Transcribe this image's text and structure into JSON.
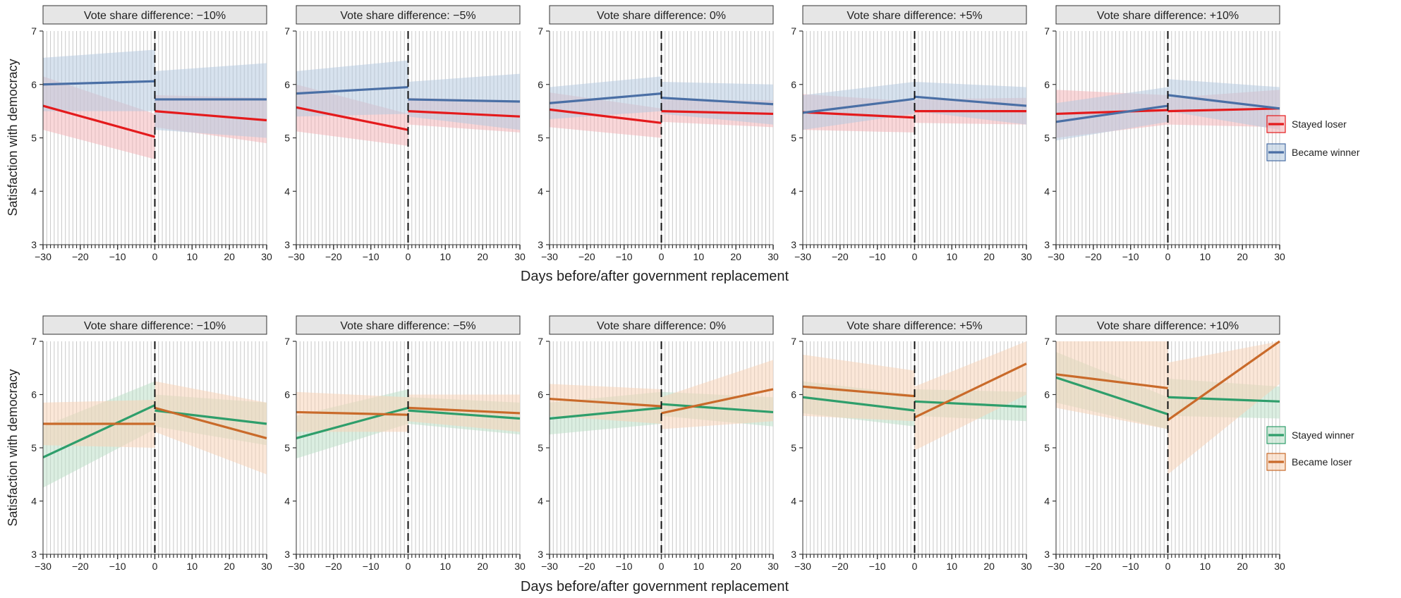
{
  "chart_data": {
    "type": "line",
    "x_range": [
      -30,
      30
    ],
    "y_range": [
      3,
      7
    ],
    "x_ticks": [
      -30,
      -20,
      -10,
      0,
      10,
      20,
      30
    ],
    "x_tick_labels": [
      "−30",
      "−20",
      "−10",
      "0",
      "10",
      "20",
      "30"
    ],
    "y_ticks": [
      3,
      4,
      5,
      6,
      7
    ],
    "y_tick_labels": [
      "3",
      "4",
      "5",
      "6",
      "7"
    ],
    "ylabel": "Satisfaction with democracy",
    "xlabel": "Days before/after government replacement",
    "cutoff_x": 0,
    "grid": "vertical lines every day",
    "panel_labels": [
      "Vote share difference: −10%",
      "Vote share difference: −5%",
      "Vote share difference: 0%",
      "Vote share difference: +5%",
      "Vote share difference: +10%"
    ],
    "rows": [
      {
        "legend_position": "right",
        "legend": [
          {
            "key": "s0",
            "label": "Stayed loser",
            "color": "#e41a1c",
            "fill": "#f4b6b9"
          },
          {
            "key": "s1",
            "label": "Became winner",
            "color": "#4a6fa5",
            "fill": "#b7cbe0"
          }
        ],
        "panels": [
          {
            "s0": {
              "pre": [
                5.6,
                5.02
              ],
              "post": [
                5.5,
                5.33
              ],
              "pre_ci": [
                [
                  6.15,
                  5.15
                ],
                [
                  5.45,
                  4.6
                ]
              ],
              "post_ci": [
                [
                  5.8,
                  5.2
                ],
                [
                  5.75,
                  4.9
                ]
              ]
            },
            "s1": {
              "pre": [
                6.0,
                6.06
              ],
              "post": [
                5.72,
                5.72
              ],
              "pre_ci": [
                [
                  6.5,
                  5.5
                ],
                [
                  6.65,
                  5.5
                ]
              ],
              "post_ci": [
                [
                  6.25,
                  5.15
                ],
                [
                  6.4,
                  5.0
                ]
              ]
            }
          },
          {
            "s0": {
              "pre": [
                5.57,
                5.15
              ],
              "post": [
                5.5,
                5.4
              ],
              "pre_ci": [
                [
                  6.0,
                  5.12
                ],
                [
                  5.45,
                  4.85
                ]
              ],
              "post_ci": [
                [
                  5.75,
                  5.25
                ],
                [
                  5.7,
                  5.1
                ]
              ]
            },
            "s1": {
              "pre": [
                5.83,
                5.95
              ],
              "post": [
                5.72,
                5.68
              ],
              "pre_ci": [
                [
                  6.25,
                  5.4
                ],
                [
                  6.45,
                  5.45
                ]
              ],
              "post_ci": [
                [
                  6.05,
                  5.4
                ],
                [
                  6.2,
                  5.15
                ]
              ]
            }
          },
          {
            "s0": {
              "pre": [
                5.53,
                5.28
              ],
              "post": [
                5.5,
                5.45
              ],
              "pre_ci": [
                [
                  5.85,
                  5.2
                ],
                [
                  5.55,
                  5.0
                ]
              ],
              "post_ci": [
                [
                  5.72,
                  5.3
                ],
                [
                  5.7,
                  5.2
                ]
              ]
            },
            "s1": {
              "pre": [
                5.65,
                5.83
              ],
              "post": [
                5.75,
                5.63
              ],
              "pre_ci": [
                [
                  5.95,
                  5.35
                ],
                [
                  6.15,
                  5.5
                ]
              ],
              "post_ci": [
                [
                  6.05,
                  5.45
                ],
                [
                  6.0,
                  5.25
                ]
              ]
            }
          },
          {
            "s0": {
              "pre": [
                5.48,
                5.38
              ],
              "post": [
                5.5,
                5.5
              ],
              "pre_ci": [
                [
                  5.82,
                  5.15
                ],
                [
                  5.68,
                  5.1
                ]
              ],
              "post_ci": [
                [
                  5.72,
                  5.28
                ],
                [
                  5.75,
                  5.25
                ]
              ]
            },
            "s1": {
              "pre": [
                5.47,
                5.73
              ],
              "post": [
                5.77,
                5.6
              ],
              "pre_ci": [
                [
                  5.8,
                  5.15
                ],
                [
                  6.05,
                  5.45
                ]
              ],
              "post_ci": [
                [
                  6.05,
                  5.5
                ],
                [
                  5.95,
                  5.25
                ]
              ]
            }
          },
          {
            "s0": {
              "pre": [
                5.45,
                5.52
              ],
              "post": [
                5.5,
                5.55
              ],
              "pre_ci": [
                [
                  5.9,
                  5.0
                ],
                [
                  5.8,
                  5.25
                ]
              ],
              "post_ci": [
                [
                  5.75,
                  5.25
                ],
                [
                  5.9,
                  5.2
                ]
              ]
            },
            "s1": {
              "pre": [
                5.3,
                5.6
              ],
              "post": [
                5.8,
                5.55
              ],
              "pre_ci": [
                [
                  5.65,
                  4.95
                ],
                [
                  5.95,
                  5.3
                ]
              ],
              "post_ci": [
                [
                  6.1,
                  5.5
                ],
                [
                  5.95,
                  5.15
                ]
              ]
            }
          }
        ]
      },
      {
        "legend_position": "right",
        "legend": [
          {
            "key": "s0",
            "label": "Stayed winner",
            "color": "#2e9e6b",
            "fill": "#bde0c9"
          },
          {
            "key": "s1",
            "label": "Became loser",
            "color": "#c96a2a",
            "fill": "#f8d3b8"
          }
        ],
        "panels": [
          {
            "s0": {
              "pre": [
                4.82,
                5.8
              ],
              "post": [
                5.7,
                5.45
              ],
              "pre_ci": [
                [
                  5.4,
                  4.25
                ],
                [
                  6.25,
                  5.35
                ]
              ],
              "post_ci": [
                [
                  6.0,
                  5.4
                ],
                [
                  5.85,
                  5.05
                ]
              ]
            },
            "s1": {
              "pre": [
                5.45,
                5.45
              ],
              "post": [
                5.75,
                5.18
              ],
              "pre_ci": [
                [
                  5.85,
                  5.05
                ],
                [
                  5.9,
                  5.0
                ]
              ],
              "post_ci": [
                [
                  6.25,
                  5.3
                ],
                [
                  5.85,
                  4.5
                ]
              ]
            }
          },
          {
            "s0": {
              "pre": [
                5.18,
                5.75
              ],
              "post": [
                5.7,
                5.55
              ],
              "pre_ci": [
                [
                  5.6,
                  4.8
                ],
                [
                  6.1,
                  5.45
                ]
              ],
              "post_ci": [
                [
                  5.95,
                  5.45
                ],
                [
                  5.85,
                  5.25
                ]
              ]
            },
            "s1": {
              "pre": [
                5.67,
                5.62
              ],
              "post": [
                5.75,
                5.65
              ],
              "pre_ci": [
                [
                  6.05,
                  5.3
                ],
                [
                  5.95,
                  5.3
                ]
              ],
              "post_ci": [
                [
                  6.0,
                  5.5
                ],
                [
                  6.0,
                  5.3
                ]
              ]
            }
          },
          {
            "s0": {
              "pre": [
                5.55,
                5.75
              ],
              "post": [
                5.82,
                5.67
              ],
              "pre_ci": [
                [
                  5.85,
                  5.25
                ],
                [
                  6.05,
                  5.45
                ]
              ],
              "post_ci": [
                [
                  6.05,
                  5.6
                ],
                [
                  5.95,
                  5.4
                ]
              ]
            },
            "s1": {
              "pre": [
                5.92,
                5.78
              ],
              "post": [
                5.65,
                6.1
              ],
              "pre_ci": [
                [
                  6.2,
                  5.6
                ],
                [
                  6.1,
                  5.45
                ]
              ],
              "post_ci": [
                [
                  5.95,
                  5.35
                ],
                [
                  6.65,
                  5.5
                ]
              ]
            }
          },
          {
            "s0": {
              "pre": [
                5.95,
                5.7
              ],
              "post": [
                5.87,
                5.77
              ],
              "pre_ci": [
                [
                  6.25,
                  5.65
                ],
                [
                  6.0,
                  5.4
                ]
              ],
              "post_ci": [
                [
                  6.1,
                  5.6
                ],
                [
                  6.05,
                  5.5
                ]
              ]
            },
            "s1": {
              "pre": [
                6.15,
                5.97
              ],
              "post": [
                5.57,
                6.58
              ],
              "pre_ci": [
                [
                  6.75,
                  5.6
                ],
                [
                  6.45,
                  5.5
                ]
              ],
              "post_ci": [
                [
                  6.15,
                  4.95
                ],
                [
                  7.0,
                  6.0
                ]
              ]
            }
          },
          {
            "s0": {
              "pre": [
                6.32,
                5.63
              ],
              "post": [
                5.95,
                5.87
              ],
              "pre_ci": [
                [
                  6.8,
                  5.85
                ],
                [
                  5.95,
                  5.35
                ]
              ],
              "post_ci": [
                [
                  6.3,
                  5.6
                ],
                [
                  6.15,
                  5.55
                ]
              ]
            },
            "s1": {
              "pre": [
                6.38,
                6.12
              ],
              "post": [
                5.52,
                7.0
              ],
              "pre_ci": [
                [
                  7.0,
                  5.75
                ],
                [
                  7.0,
                  5.35
                ]
              ],
              "post_ci": [
                [
                  6.6,
                  4.5
                ],
                [
                  7.0,
                  6.2
                ]
              ]
            }
          }
        ]
      }
    ]
  }
}
